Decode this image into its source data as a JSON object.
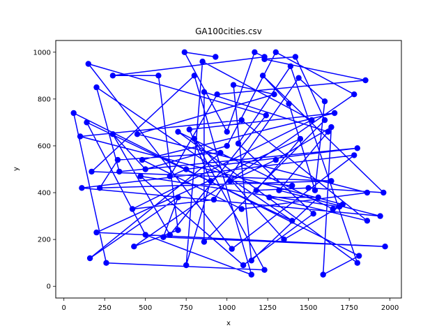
{
  "chart_data": {
    "type": "line",
    "title": "GA100cities.csv",
    "xlabel": "x",
    "ylabel": "y",
    "xlim": [
      -50,
      2070
    ],
    "ylim": [
      -50,
      1050
    ],
    "xticks": [
      0,
      250,
      500,
      750,
      1000,
      1250,
      1500,
      1750,
      2000
    ],
    "yticks": [
      0,
      200,
      400,
      600,
      800,
      1000
    ],
    "grid": false,
    "legend": "none",
    "series": [
      {
        "color": "#0000ff",
        "marker": "circle",
        "points": [
          [
            930,
            980
          ],
          [
            740,
            1000
          ],
          [
            1000,
            660
          ],
          [
            1170,
            1000
          ],
          [
            1230,
            980
          ],
          [
            300,
            900
          ],
          [
            580,
            900
          ],
          [
            700,
            240
          ],
          [
            430,
            170
          ],
          [
            1780,
            820
          ],
          [
            1300,
            1000
          ],
          [
            1000,
            600
          ],
          [
            500,
            500
          ],
          [
            300,
            650
          ],
          [
            650,
            220
          ],
          [
            1240,
            730
          ],
          [
            150,
            950
          ],
          [
            1030,
            160
          ],
          [
            1780,
            560
          ],
          [
            110,
            420
          ],
          [
            1940,
            300
          ],
          [
            1320,
            410
          ],
          [
            1620,
            660
          ],
          [
            860,
            830
          ],
          [
            860,
            190
          ],
          [
            1600,
            710
          ],
          [
            1420,
            980
          ],
          [
            1230,
            970
          ],
          [
            1850,
            880
          ],
          [
            940,
            820
          ],
          [
            650,
            470
          ],
          [
            750,
            500
          ],
          [
            1800,
            590
          ],
          [
            340,
            490
          ],
          [
            200,
            850
          ],
          [
            1400,
            280
          ],
          [
            140,
            700
          ],
          [
            500,
            220
          ],
          [
            1150,
            50
          ],
          [
            800,
            900
          ],
          [
            170,
            490
          ],
          [
            1640,
            450
          ],
          [
            220,
            420
          ],
          [
            330,
            540
          ],
          [
            960,
            570
          ],
          [
            160,
            120
          ],
          [
            700,
            380
          ],
          [
            610,
            210
          ],
          [
            1970,
            170
          ],
          [
            200,
            230
          ],
          [
            1450,
            630
          ],
          [
            1180,
            410
          ],
          [
            1500,
            420
          ],
          [
            1960,
            400
          ],
          [
            1220,
            900
          ],
          [
            1380,
            780
          ],
          [
            1540,
            410
          ],
          [
            1600,
            790
          ],
          [
            1440,
            890
          ],
          [
            920,
            370
          ],
          [
            420,
            330
          ],
          [
            1520,
            710
          ],
          [
            850,
            960
          ],
          [
            750,
            90
          ],
          [
            900,
            450
          ],
          [
            770,
            670
          ],
          [
            1660,
            740
          ],
          [
            480,
            540
          ],
          [
            1090,
            330
          ],
          [
            1860,
            400
          ],
          [
            450,
            650
          ],
          [
            1290,
            820
          ],
          [
            1040,
            860
          ],
          [
            1150,
            110
          ],
          [
            1560,
            380
          ],
          [
            1260,
            380
          ],
          [
            1860,
            280
          ],
          [
            1090,
            710
          ],
          [
            100,
            640
          ],
          [
            1710,
            350
          ],
          [
            1650,
            330
          ],
          [
            700,
            660
          ],
          [
            1800,
            100
          ],
          [
            1390,
            940
          ],
          [
            1070,
            610
          ],
          [
            1530,
            310
          ],
          [
            1100,
            90
          ],
          [
            470,
            470
          ],
          [
            1690,
            340
          ],
          [
            1350,
            200
          ],
          [
            800,
            630
          ],
          [
            1230,
            70
          ],
          [
            260,
            100
          ],
          [
            60,
            740
          ],
          [
            1810,
            130
          ],
          [
            1590,
            50
          ],
          [
            1640,
            680
          ],
          [
            1300,
            540
          ],
          [
            1020,
            450
          ],
          [
            1400,
            430
          ]
        ]
      }
    ]
  }
}
